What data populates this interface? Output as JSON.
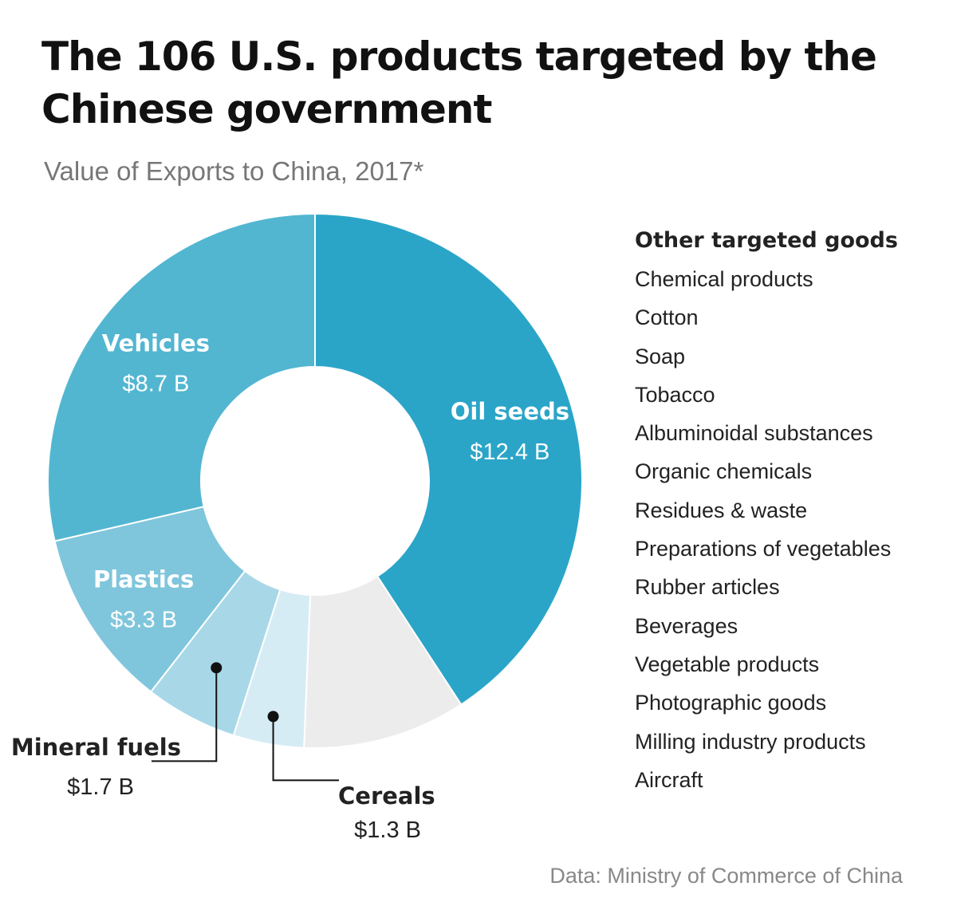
{
  "title": "The 106 U.S. products targeted by the Chinese government",
  "subtitle": "Value of Exports to China, 2017*",
  "chart_data": {
    "type": "pie",
    "donut": true,
    "slices": [
      {
        "name": "Oil seeds",
        "value": 12.4,
        "value_label": "$12.4 B",
        "color": "#2aa5c8",
        "label_color": "#ffffff"
      },
      {
        "name": "",
        "value": 3.0,
        "value_label": "",
        "color": "#ececec",
        "label_color": "#222222"
      },
      {
        "name": "Cereals",
        "value": 1.3,
        "value_label": "$1.3 B",
        "color": "#d6ecf4",
        "label_color": "#222222"
      },
      {
        "name": "Mineral fuels",
        "value": 1.7,
        "value_label": "$1.7 B",
        "color": "#a8d8e8",
        "label_color": "#222222"
      },
      {
        "name": "Plastics",
        "value": 3.3,
        "value_label": "$3.3 B",
        "color": "#7fc6dc",
        "label_color": "#ffffff"
      },
      {
        "name": "Vehicles",
        "value": 8.7,
        "value_label": "$8.7 B",
        "color": "#52b6d1",
        "label_color": "#ffffff"
      }
    ]
  },
  "legend": {
    "title": "Other targeted goods",
    "items": [
      "Chemical products",
      "Cotton",
      "Soap",
      "Tobacco",
      "Albuminoidal substances",
      "Organic chemicals",
      "Residues & waste",
      "Preparations of vegetables",
      "Rubber articles",
      "Beverages",
      "Vegetable products",
      "Photographic goods",
      "Milling industry products",
      "Aircraft"
    ]
  },
  "source": "Data: Ministry of Commerce of China"
}
